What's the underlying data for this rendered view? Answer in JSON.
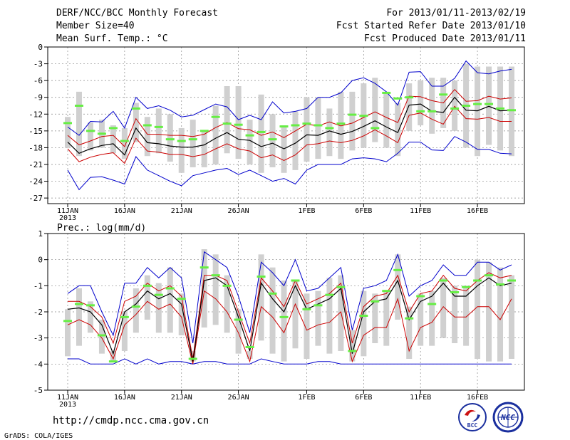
{
  "header": {
    "title": "DERF/NCC/BCC Monthly Forecast",
    "member_size": "Member Size=40",
    "variable": "Mean Surf. Temp.: °C",
    "period": "For 2013/01/11-2013/02/19",
    "refer_date": "Fcst Started Refer Date 2013/01/10",
    "produced_date": "Fcst Produced Date 2013/01/11"
  },
  "footer": {
    "url": "http://cmdp.ncc.cma.gov.cn",
    "credit": "GrADS: COLA/IGES",
    "logo_bcc": "BCC",
    "logo_ncc": "NCC"
  },
  "colors": {
    "mean": "#000000",
    "spread": "#cc0000",
    "extreme": "#0000cc",
    "obs": "#66ee44",
    "box": "#d0d0d0"
  },
  "chart_data": [
    {
      "type": "line",
      "title": "Mean Surf. Temp.: °C",
      "ylim": [
        -28,
        0
      ],
      "yticks": [
        0,
        -3,
        -6,
        -9,
        -12,
        -15,
        -18,
        -21,
        -24,
        -27
      ],
      "xlim": [
        0,
        39
      ],
      "xticks": [
        {
          "day": 0,
          "label": "11JAN"
        },
        {
          "day": 5,
          "label": "16JAN"
        },
        {
          "day": 10,
          "label": "21JAN"
        },
        {
          "day": 15,
          "label": "26JAN"
        },
        {
          "day": 21,
          "label": "1FEB"
        },
        {
          "day": 26,
          "label": "6FEB"
        },
        {
          "day": 31,
          "label": "11FEB"
        },
        {
          "day": 36,
          "label": "16FEB"
        }
      ],
      "year_label": "2013",
      "series": [
        {
          "name": "ensemble mean",
          "values": [
            -17,
            -19,
            -18.2,
            -17.6,
            -17.3,
            -19.3,
            -14.5,
            -17.1,
            -17.3,
            -17.7,
            -17.9,
            -17.9,
            -17.5,
            -16.3,
            -15.3,
            -16.5,
            -16.7,
            -17.8,
            -17.2,
            -18.2,
            -17.2,
            -15.7,
            -15.8,
            -15,
            -15.6,
            -15.1,
            -14.2,
            -13.2,
            -14.3,
            -15.3,
            -10.4,
            -10.2,
            -11.5,
            -11.7,
            -9,
            -11.3,
            -11.4,
            -10.6,
            -11.4,
            -11.3
          ]
        },
        {
          "name": "upper spread",
          "values": [
            -15.8,
            -17.5,
            -16.8,
            -16,
            -15.8,
            -17.8,
            -12.8,
            -15.6,
            -15.6,
            -15.8,
            -15.8,
            -16,
            -15.6,
            -14.4,
            -13.5,
            -14.6,
            -14.8,
            -15.8,
            -15.2,
            -16.2,
            -15,
            -13.8,
            -14.1,
            -13.4,
            -14.1,
            -13.6,
            -12.6,
            -11.6,
            -12.6,
            -13.5,
            -8.8,
            -8.9,
            -9.6,
            -10,
            -7.6,
            -9.7,
            -9.6,
            -8.8,
            -9.3,
            -9.1
          ]
        },
        {
          "name": "lower spread",
          "values": [
            -18.2,
            -20.5,
            -19.7,
            -19.2,
            -18.9,
            -20.8,
            -16.3,
            -18.6,
            -18.8,
            -19.2,
            -19.2,
            -19.6,
            -19.2,
            -18.2,
            -17.3,
            -18.2,
            -18.6,
            -19.8,
            -19.3,
            -20.3,
            -19.3,
            -17.5,
            -17.3,
            -16.8,
            -17.1,
            -16.7,
            -15.9,
            -14.8,
            -15.9,
            -17.1,
            -12.2,
            -11.8,
            -12.9,
            -13.8,
            -10.6,
            -12.8,
            -12.9,
            -12.6,
            -13.3,
            -13.3
          ]
        },
        {
          "name": "ensemble max",
          "values": [
            -14.3,
            -15.8,
            -13.3,
            -13.4,
            -11.5,
            -14.5,
            -9,
            -11,
            -10.5,
            -11.3,
            -12.5,
            -12.2,
            -11.2,
            -10.2,
            -10.7,
            -13,
            -12.2,
            -13,
            -9.8,
            -11.8,
            -11.5,
            -11,
            -9,
            -9,
            -8.2,
            -6,
            -5.5,
            -6.5,
            -8,
            -10.4,
            -4.5,
            -4.4,
            -7,
            -7,
            -5.6,
            -2.5,
            -4.6,
            -4.8,
            -4.3,
            -4
          ]
        },
        {
          "name": "ensemble min",
          "values": [
            -22,
            -25.5,
            -23.3,
            -23.2,
            -23.8,
            -24.5,
            -19.6,
            -22,
            -23,
            -24,
            -24.8,
            -23,
            -22.5,
            -22,
            -21.7,
            -22.8,
            -22,
            -23,
            -24,
            -23.5,
            -24.5,
            -22,
            -21,
            -21,
            -21,
            -20,
            -19.8,
            -20,
            -20.5,
            -19,
            -17,
            -17,
            -18.4,
            -18.5,
            -16,
            -17,
            -18.3,
            -18.3,
            -19,
            -19.1
          ]
        },
        {
          "name": "box top",
          "values": [
            -12.5,
            -8,
            -13.5,
            -13,
            -14,
            -14.5,
            -10,
            -12.5,
            -11,
            -12,
            -14.5,
            -13,
            -15,
            -10.5,
            -7,
            -7,
            -13,
            -8.5,
            -12,
            -14,
            -11.5,
            -9,
            -9,
            -11,
            -8,
            -8,
            -6.5,
            -5.5,
            -8,
            -10,
            -6.5,
            -6,
            -5.5,
            -5.5,
            -6,
            -3,
            -3.5,
            -3.5,
            -3.5,
            -3.5
          ]
        },
        {
          "name": "box bottom",
          "values": [
            -18,
            -19.5,
            -18.5,
            -18,
            -19,
            -20,
            -17,
            -19.5,
            -19,
            -20.5,
            -22.5,
            -21.5,
            -21.5,
            -21,
            -19,
            -20,
            -21,
            -22.5,
            -21.5,
            -22.5,
            -22,
            -20.5,
            -20,
            -19.5,
            -20,
            -18.5,
            -18,
            -17,
            -18,
            -19.5,
            -15,
            -14,
            -15.5,
            -14.5,
            -15,
            -18,
            -19.5,
            -17.5,
            -18.5,
            -19.5
          ]
        },
        {
          "name": "observation",
          "values": [
            -13.6,
            -10.5,
            -15,
            -15.5,
            -14.5,
            -16.8,
            -11,
            -14,
            -14.3,
            -16.5,
            -16.8,
            -16.5,
            -15,
            -12.5,
            -13.7,
            -13.9,
            -15.8,
            -15.2,
            -16.5,
            -14.2,
            -14,
            -13.7,
            -14,
            -14.5,
            -13.7,
            -12.1,
            -12.3,
            -14.5,
            -8.2,
            -9.2,
            -9,
            -11.5,
            -11.5,
            -8.5,
            -11,
            -10.5,
            -10.2,
            -10.2,
            -11,
            -11.3
          ]
        }
      ]
    },
    {
      "type": "line",
      "title": "Prec.: log(mm/d)",
      "ylim": [
        -5,
        1
      ],
      "yticks": [
        1,
        0,
        -1,
        -2,
        -3,
        -4,
        -5
      ],
      "xlim": [
        0,
        39
      ],
      "xticks": [
        {
          "day": 0,
          "label": "11JAN"
        },
        {
          "day": 5,
          "label": "16JAN"
        },
        {
          "day": 10,
          "label": "21JAN"
        },
        {
          "day": 15,
          "label": "26JAN"
        },
        {
          "day": 21,
          "label": "1FEB"
        },
        {
          "day": 26,
          "label": "6FEB"
        },
        {
          "day": 31,
          "label": "11FEB"
        },
        {
          "day": 36,
          "label": "16FEB"
        }
      ],
      "year_label": "2013",
      "series": [
        {
          "name": "ensemble mean",
          "values": [
            -1.9,
            -1.85,
            -2,
            -2.5,
            -3.6,
            -2,
            -1.7,
            -1.2,
            -1.5,
            -1.3,
            -1.7,
            -3.9,
            -0.8,
            -0.7,
            -1,
            -2.2,
            -3.5,
            -0.9,
            -1.5,
            -2,
            -1,
            -1.9,
            -1.7,
            -1.5,
            -1.1,
            -3.6,
            -2,
            -1.6,
            -1.5,
            -0.8,
            -2.3,
            -1.6,
            -1.4,
            -0.9,
            -1.4,
            -1.4,
            -1,
            -0.7,
            -1,
            -0.9
          ]
        },
        {
          "name": "upper spread",
          "values": [
            -1.6,
            -1.6,
            -1.8,
            -2.2,
            -3.2,
            -1.6,
            -1.4,
            -0.9,
            -1.2,
            -1,
            -1.4,
            -3.8,
            -0.6,
            -0.6,
            -0.8,
            -2,
            -3.2,
            -0.7,
            -1.2,
            -1.8,
            -0.8,
            -1.7,
            -1.5,
            -1.3,
            -0.9,
            -3.2,
            -1.8,
            -1.4,
            -1.3,
            -0.6,
            -2,
            -1.3,
            -1.2,
            -0.6,
            -1.1,
            -1.2,
            -0.8,
            -0.5,
            -0.7,
            -0.6
          ]
        },
        {
          "name": "lower spread",
          "values": [
            -2.5,
            -2.3,
            -2.5,
            -3,
            -3.8,
            -2.5,
            -2.1,
            -1.6,
            -1.9,
            -1.7,
            -2.2,
            -4,
            -1.2,
            -1.5,
            -2,
            -2.8,
            -3.9,
            -1.8,
            -2.2,
            -2.8,
            -1.7,
            -2.7,
            -2.5,
            -2.4,
            -2,
            -3.9,
            -2.9,
            -2.6,
            -2.6,
            -1.5,
            -3.5,
            -2.6,
            -2.4,
            -1.8,
            -2.2,
            -2.2,
            -1.8,
            -1.8,
            -2.3,
            -1.5
          ]
        },
        {
          "name": "ensemble max",
          "values": [
            -1.3,
            -1,
            -1,
            -2,
            -2.9,
            -0.9,
            -0.9,
            -0.3,
            -0.7,
            -0.3,
            -0.7,
            -3.2,
            0.3,
            0,
            -0.3,
            -1.4,
            -2.8,
            -0.1,
            -0.5,
            -1,
            0,
            -1.2,
            -1.1,
            -0.7,
            -0.3,
            -2.7,
            -1.1,
            -1,
            -0.8,
            0.2,
            -1.4,
            -1,
            -0.8,
            -0.2,
            -0.6,
            -0.6,
            -0.1,
            -0.1,
            -0.4,
            -0.2
          ]
        },
        {
          "name": "ensemble min",
          "values": [
            -3.8,
            -3.8,
            -4,
            -4,
            -4,
            -3.8,
            -4,
            -3.8,
            -4,
            -3.9,
            -3.9,
            -4,
            -3.9,
            -3.9,
            -4,
            -4,
            -4,
            -3.8,
            -3.9,
            -4,
            -4,
            -4,
            -3.9,
            -3.9,
            -4,
            -4,
            -4,
            -4,
            -4,
            -4,
            -4,
            -4,
            -4,
            -4,
            -4,
            -4,
            -4,
            -4,
            -4,
            -4
          ]
        },
        {
          "name": "box top",
          "values": [
            -1.9,
            -1.1,
            -1.6,
            -2.3,
            -3.5,
            -2,
            -1.1,
            -0.6,
            -0.9,
            -0.3,
            -1.3,
            -3.5,
            0.4,
            0.2,
            -0.6,
            -1.9,
            -3.5,
            0.2,
            -0.3,
            -0.8,
            -0.8,
            -1.3,
            -1.2,
            -0.7,
            -0.6,
            -2.7,
            -1.2,
            -1.3,
            -1.2,
            0.2,
            -1.8,
            -1.3,
            -1.2,
            -0.7,
            -1,
            -1,
            0,
            -0.1,
            -0.3,
            -0.6
          ]
        },
        {
          "name": "box bottom",
          "values": [
            -3.7,
            -3.3,
            -2.8,
            -3.6,
            -3.9,
            -3.5,
            -2.8,
            -2.3,
            -2.8,
            -2.8,
            -2.9,
            -3.9,
            -2.6,
            -2.5,
            -2.8,
            -3.6,
            -3.8,
            -3.1,
            -3.6,
            -3.9,
            -3.4,
            -3.8,
            -3.3,
            -3.6,
            -3.5,
            -3.9,
            -3.7,
            -3.2,
            -3.3,
            -2.3,
            -3.8,
            -3.3,
            -3.3,
            -3,
            -3.2,
            -3.3,
            -3.8,
            -3.9,
            -3.9,
            -3.8
          ]
        },
        {
          "name": "observation",
          "values": [
            -2.35,
            -1.7,
            -1.75,
            -2.9,
            -3.9,
            -2.2,
            -1.8,
            -1,
            -1.35,
            -1.1,
            -1.5,
            -3.8,
            -0.3,
            -0.6,
            -1,
            -2.3,
            -3.35,
            -0.65,
            -1.3,
            -2.2,
            -0.8,
            -1.9,
            -1.75,
            -1.35,
            -1.05,
            -3.5,
            -2.15,
            -1.6,
            -1.2,
            -0.4,
            -2.25,
            -1.4,
            -1.7,
            -0.8,
            -1.25,
            -1.05,
            -0.8,
            -0.6,
            -0.95,
            -0.8
          ]
        }
      ]
    }
  ]
}
